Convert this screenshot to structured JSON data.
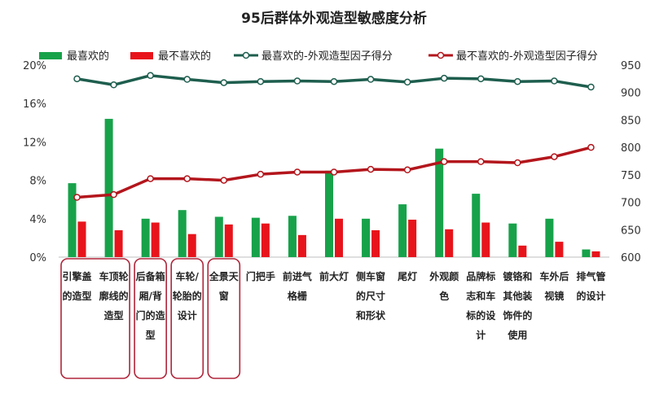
{
  "chart_data": {
    "type": "bar",
    "title": "95后群体外观造型敏感度分析",
    "categories": [
      [
        "引擎盖",
        "的造型"
      ],
      [
        "车顶轮",
        "廓线的",
        "造型"
      ],
      [
        "后备箱",
        "厢/背",
        "门的造",
        "型"
      ],
      [
        "车轮/",
        "轮胎的",
        "设计"
      ],
      [
        "全景天",
        "窗"
      ],
      [
        "门把手"
      ],
      [
        "前进气",
        "格栅"
      ],
      [
        "前大灯"
      ],
      [
        "侧车窗",
        "的尺寸",
        "和形状"
      ],
      [
        "尾灯"
      ],
      [
        "外观颜",
        "色"
      ],
      [
        "品牌标",
        "志和车",
        "标的设",
        "计"
      ],
      [
        "镀铬和",
        "其他装",
        "饰件的",
        "使用"
      ],
      [
        "车外后",
        "视镜"
      ],
      [
        "排气管",
        "的设计"
      ]
    ],
    "series": [
      {
        "name": "最喜欢的",
        "kind": "bar",
        "axis": "left",
        "color": "#17a24a",
        "values": [
          7.7,
          14.4,
          4.0,
          4.9,
          4.2,
          4.1,
          4.3,
          9.0,
          4.0,
          5.5,
          11.3,
          6.6,
          3.5,
          4.0,
          0.8
        ]
      },
      {
        "name": "最不喜欢的",
        "kind": "bar",
        "axis": "left",
        "color": "#e8141b",
        "values": [
          3.7,
          2.8,
          3.6,
          2.4,
          3.4,
          3.5,
          2.3,
          4.0,
          2.8,
          3.9,
          2.9,
          3.6,
          1.2,
          1.6,
          0.6
        ]
      },
      {
        "name": "最喜欢的-外观造型因子得分",
        "kind": "line",
        "axis": "right",
        "color": "#1e5e4e",
        "values": [
          925,
          914,
          931,
          924,
          918,
          920,
          921,
          920,
          924,
          919,
          926,
          925,
          920,
          921,
          910
        ]
      },
      {
        "name": "最不喜欢的-外观造型因子得分",
        "kind": "line",
        "axis": "right",
        "color": "#b3161c",
        "values": [
          709,
          714,
          743,
          743,
          740,
          751,
          755,
          755,
          760,
          759,
          774,
          774,
          772,
          783,
          800
        ]
      }
    ],
    "y_left": {
      "ticks": [
        "0%",
        "4%",
        "8%",
        "12%",
        "16%",
        "20%"
      ],
      "min": 0,
      "max": 20
    },
    "y_right": {
      "ticks": [
        "600",
        "650",
        "700",
        "750",
        "800",
        "850",
        "900",
        "950"
      ],
      "min": 600,
      "max": 950
    },
    "legend_position": "top",
    "grid": false,
    "highlight_groups": [
      [
        0,
        1
      ],
      [
        2,
        2
      ],
      [
        3,
        3
      ],
      [
        4,
        4
      ]
    ],
    "highlight_color": "#b0253a"
  }
}
